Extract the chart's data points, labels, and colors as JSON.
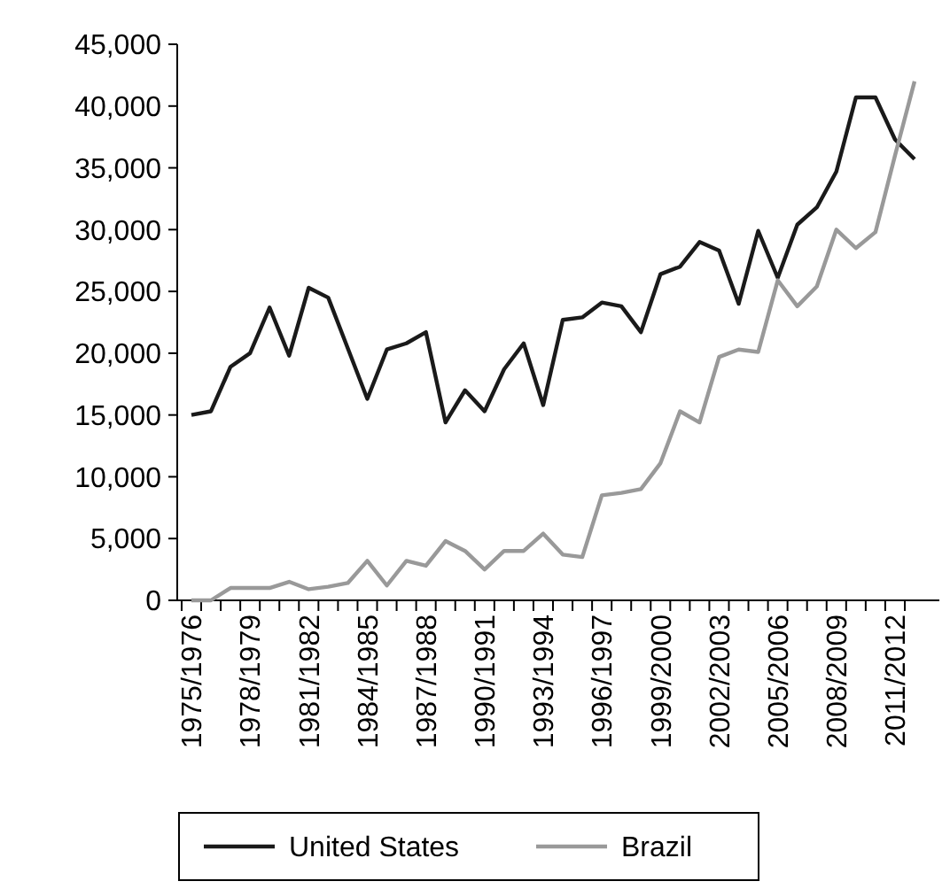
{
  "chart_data": {
    "type": "line",
    "categories": [
      "1975/1976",
      null,
      null,
      "1978/1979",
      null,
      null,
      "1981/1982",
      null,
      null,
      "1984/1985",
      null,
      null,
      "1987/1988",
      null,
      null,
      "1990/1991",
      null,
      null,
      "1993/1994",
      null,
      null,
      "1996/1997",
      null,
      null,
      "1999/2000",
      null,
      null,
      "2002/2003",
      null,
      null,
      "2005/2006",
      null,
      null,
      "2008/2009",
      null,
      null,
      "2011/2012",
      null
    ],
    "series": [
      {
        "name": "United States",
        "color": "#1a1a1a",
        "values": [
          15000,
          15300,
          18900,
          20000,
          23700,
          19800,
          25300,
          24500,
          20400,
          16300,
          20300,
          20800,
          21700,
          14400,
          17000,
          15300,
          18700,
          20800,
          15800,
          22700,
          22900,
          24100,
          23800,
          21700,
          26400,
          27000,
          29000,
          28300,
          24000,
          29900,
          26100,
          30400,
          31800,
          34700,
          40700,
          40700,
          37300,
          35700
        ]
      },
      {
        "name": "Brazil",
        "color": "#999999",
        "values": [
          0,
          0,
          1000,
          1000,
          1000,
          1500,
          900,
          1100,
          1400,
          3200,
          1200,
          3200,
          2800,
          4800,
          4000,
          2500,
          4000,
          4000,
          5400,
          3700,
          3500,
          8500,
          8700,
          9000,
          11100,
          15300,
          14400,
          19700,
          20300,
          20100,
          25900,
          23800,
          25400,
          30000,
          28500,
          29800,
          36000,
          42000
        ]
      }
    ],
    "ylim": [
      0,
      45000
    ],
    "yticks": [
      {
        "value": 0,
        "label": "0"
      },
      {
        "value": 5000,
        "label": "5,000"
      },
      {
        "value": 10000,
        "label": "10,000"
      },
      {
        "value": 15000,
        "label": "15,000"
      },
      {
        "value": 20000,
        "label": "20,000"
      },
      {
        "value": 25000,
        "label": "25,000"
      },
      {
        "value": 30000,
        "label": "30,000"
      },
      {
        "value": 35000,
        "label": "35,000"
      },
      {
        "value": 40000,
        "label": "40,000"
      },
      {
        "value": 45000,
        "label": "45,000"
      }
    ],
    "grid": false,
    "legend": "bottom",
    "marker": "none",
    "line_style": "solid"
  }
}
